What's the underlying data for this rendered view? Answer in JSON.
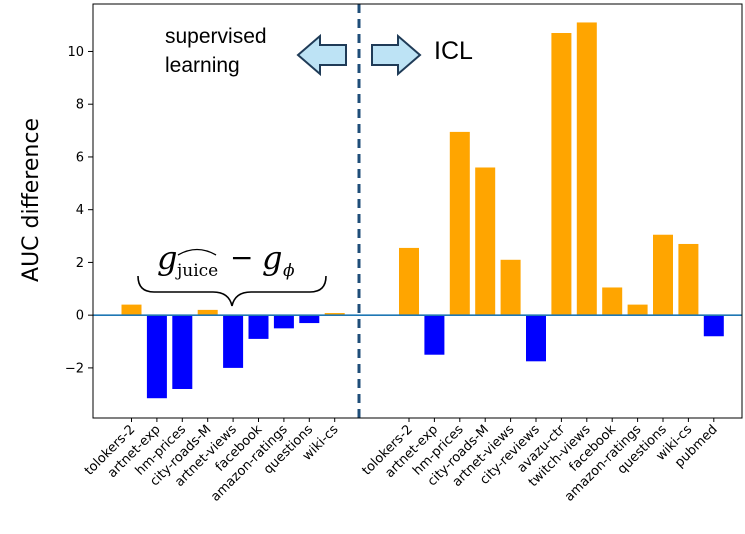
{
  "chart_data": {
    "type": "bar",
    "ylabel": "AUC difference",
    "ylim": [
      -3.9,
      11.8
    ],
    "yticks": [
      -2,
      0,
      2,
      4,
      6,
      8,
      10
    ],
    "ytick_labels": [
      "−2",
      "0",
      "2",
      "4",
      "6",
      "8",
      "10"
    ],
    "colors": {
      "positive": "#FFA500",
      "negative": "#0000FF",
      "zero_line": "#1f77b4",
      "divider": "#1f4e79",
      "arrow_fill": "#BDE3F5"
    },
    "groups": [
      {
        "label": "supervised\nlearning",
        "label_lines": [
          "supervised",
          "learning"
        ],
        "annotation": {
          "g": "g",
          "hat_sub": "juice",
          "minus": "−",
          "phi": "ϕ"
        },
        "categories": [
          "tolokers-2",
          "artnet-exp",
          "hm-prices",
          "city-roads-M",
          "artnet-views",
          "facebook",
          "amazon-ratings",
          "questions",
          "wiki-cs"
        ],
        "values": [
          0.4,
          -3.15,
          -2.8,
          0.2,
          -2.0,
          -0.9,
          -0.5,
          -0.3,
          0.08
        ]
      },
      {
        "label": "ICL",
        "categories": [
          "tolokers-2",
          "artnet-exp",
          "hm-prices",
          "city-roads-M",
          "artnet-views",
          "city-reviews",
          "avazu-ctr",
          "twitch-views",
          "facebook",
          "amazon-ratings",
          "questions",
          "wiki-cs",
          "pubmed"
        ],
        "values": [
          2.55,
          -1.5,
          6.95,
          5.6,
          2.1,
          -1.75,
          10.7,
          11.1,
          1.05,
          0.4,
          3.05,
          2.7,
          -0.8
        ]
      }
    ]
  }
}
